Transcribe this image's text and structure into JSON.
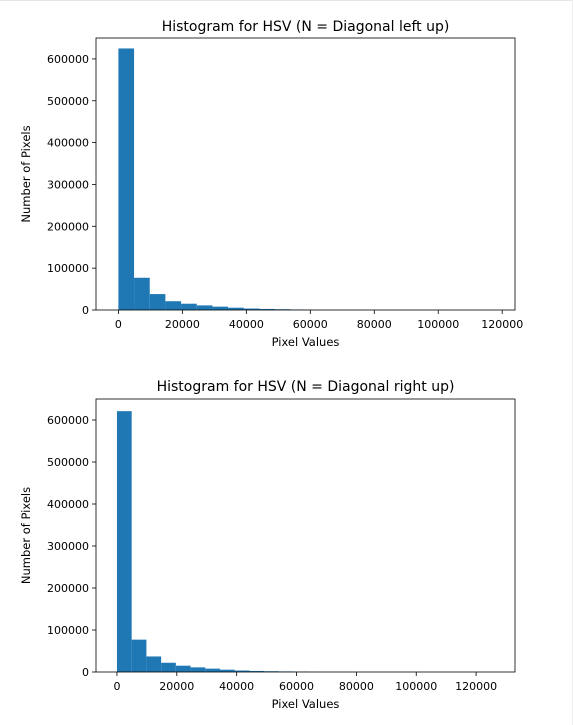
{
  "chart_data": [
    {
      "type": "bar",
      "title": "Histogram for HSV (N = Diagonal left up)",
      "xlabel": "Pixel Values",
      "ylabel": "Number of Pixels",
      "xticks": [
        "0",
        "20000",
        "40000",
        "60000",
        "80000",
        "100000",
        "120000"
      ],
      "yticks": [
        "0",
        "100000",
        "200000",
        "300000",
        "400000",
        "500000",
        "600000"
      ],
      "xlim": [
        -7000,
        124000
      ],
      "ylim": [
        0,
        650000
      ],
      "bin_width": 4900,
      "bin_start": 0,
      "values": [
        625000,
        77000,
        38000,
        21000,
        15000,
        11000,
        8000,
        5500,
        3500,
        2500,
        1800,
        1200,
        500,
        300,
        200,
        150,
        100,
        80,
        60,
        50,
        40,
        30,
        20,
        10,
        5
      ],
      "color": "#1f77b4",
      "grid": false
    },
    {
      "type": "bar",
      "title": "Histogram for HSV (N = Diagonal right up)",
      "xlabel": "Pixel Values",
      "ylabel": "Number of Pixels",
      "xticks": [
        "0",
        "20000",
        "40000",
        "60000",
        "80000",
        "100000",
        "120000"
      ],
      "yticks": [
        "0",
        "100000",
        "200000",
        "300000",
        "400000",
        "500000",
        "600000"
      ],
      "xlim": [
        -7000,
        133000
      ],
      "ylim": [
        0,
        650000
      ],
      "bin_width": 4920,
      "bin_start": 0,
      "values": [
        621000,
        77000,
        37000,
        22000,
        15000,
        11000,
        8000,
        5500,
        3500,
        2500,
        1800,
        1300,
        800,
        300,
        200,
        150,
        100,
        80,
        60,
        50,
        40,
        30,
        20,
        10,
        5
      ],
      "color": "#1f77b4",
      "grid": false
    }
  ]
}
